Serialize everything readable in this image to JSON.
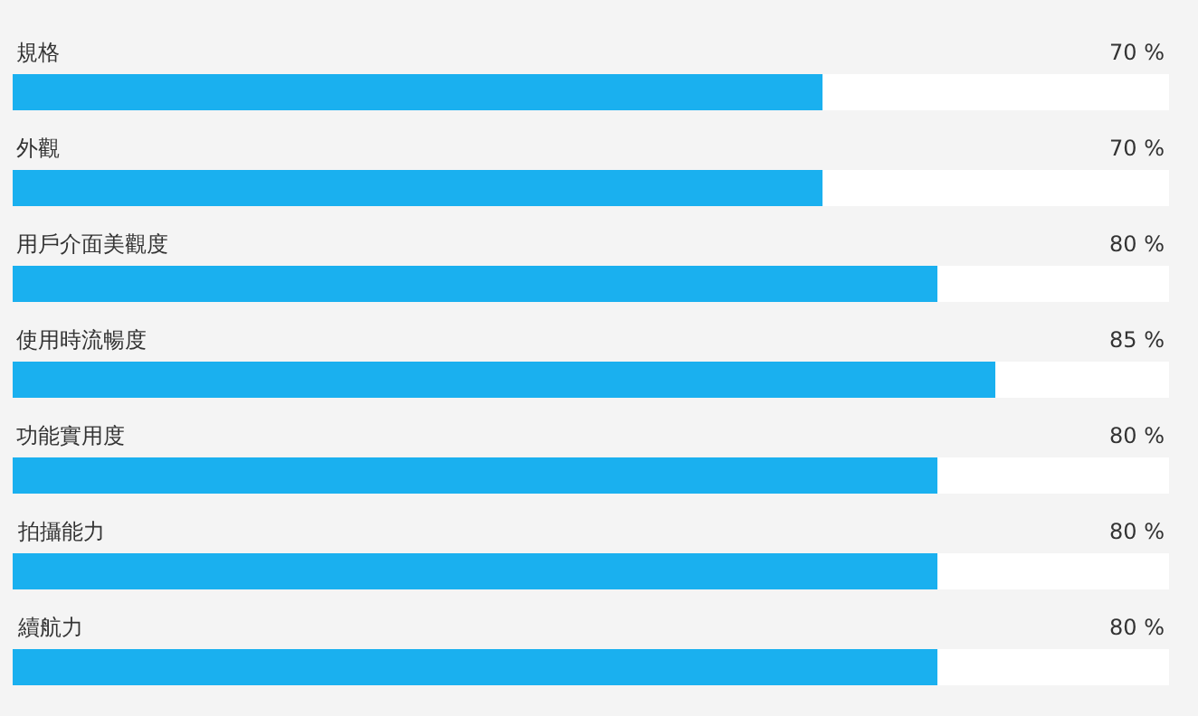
{
  "chart_data": {
    "type": "bar",
    "orientation": "horizontal",
    "categories": [
      "規格",
      "外觀",
      "用戶介面美觀度",
      "使用時流暢度",
      "功能實用度",
      "拍攝能力",
      "續航力"
    ],
    "values": [
      70,
      70,
      80,
      85,
      80,
      80,
      80
    ],
    "value_labels": [
      "70 %",
      "70 %",
      "80 %",
      "85 %",
      "80 %",
      "80 %",
      "80 %"
    ],
    "color": "#1ab0ef",
    "xlim": [
      0,
      100
    ],
    "legend": false
  }
}
